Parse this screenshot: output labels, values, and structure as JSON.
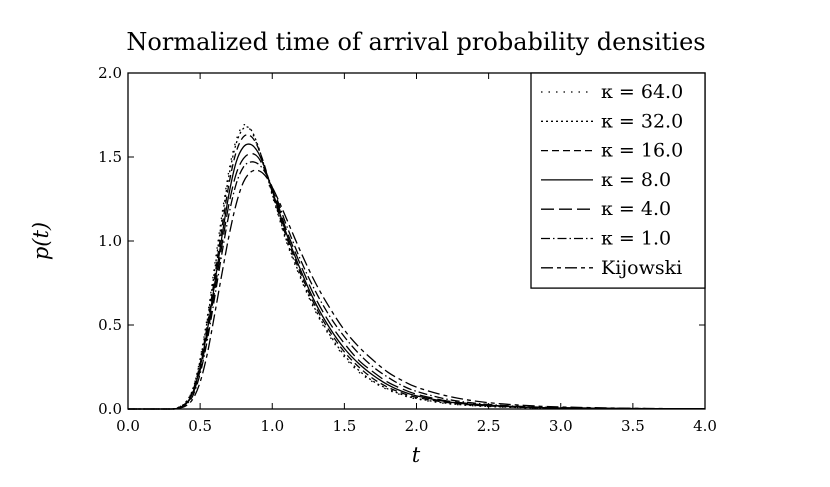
{
  "chart_data": {
    "type": "line",
    "title": "Normalized time of arrival probability densities",
    "xlabel": "t",
    "ylabel": "p(t)",
    "xlim": [
      0.0,
      4.0
    ],
    "ylim": [
      0.0,
      2.0
    ],
    "xticks": [
      "0.0",
      "0.5",
      "1.0",
      "1.5",
      "2.0",
      "2.5",
      "3.0",
      "3.5",
      "4.0"
    ],
    "yticks": [
      "0.0",
      "0.5",
      "1.0",
      "1.5",
      "2.0"
    ],
    "grid": false,
    "legend_position": "top-right",
    "x": [
      0.0,
      0.3,
      0.35,
      0.4,
      0.45,
      0.5,
      0.55,
      0.6,
      0.65,
      0.7,
      0.75,
      0.8,
      0.85,
      0.9,
      0.95,
      1.0,
      1.05,
      1.1,
      1.2,
      1.3,
      1.4,
      1.5,
      1.6,
      1.7,
      1.8,
      1.9,
      2.0,
      2.2,
      2.4,
      2.6,
      2.8,
      3.0,
      3.5,
      4.0
    ],
    "series": [
      {
        "name": "κ = 64.0",
        "dash": "1.5 6",
        "values": [
          0,
          0,
          0.01,
          0.04,
          0.12,
          0.3,
          0.55,
          0.85,
          1.15,
          1.42,
          1.6,
          1.69,
          1.66,
          1.56,
          1.42,
          1.27,
          1.13,
          0.99,
          0.77,
          0.58,
          0.43,
          0.31,
          0.22,
          0.16,
          0.115,
          0.082,
          0.06,
          0.033,
          0.019,
          0.011,
          0.007,
          0.004,
          0.002,
          0.001
        ]
      },
      {
        "name": "κ = 32.0",
        "dash": "2 3",
        "values": [
          0,
          0,
          0.01,
          0.04,
          0.12,
          0.29,
          0.53,
          0.82,
          1.12,
          1.39,
          1.58,
          1.67,
          1.665,
          1.57,
          1.43,
          1.28,
          1.14,
          1.0,
          0.78,
          0.59,
          0.44,
          0.32,
          0.23,
          0.165,
          0.12,
          0.086,
          0.063,
          0.035,
          0.02,
          0.012,
          0.007,
          0.0045,
          0.002,
          0.001
        ]
      },
      {
        "name": "κ = 16.0",
        "dash": "7 4",
        "values": [
          0,
          0,
          0.01,
          0.035,
          0.11,
          0.27,
          0.5,
          0.78,
          1.07,
          1.34,
          1.53,
          1.62,
          1.625,
          1.56,
          1.44,
          1.29,
          1.15,
          1.02,
          0.8,
          0.61,
          0.46,
          0.34,
          0.25,
          0.18,
          0.13,
          0.095,
          0.07,
          0.04,
          0.023,
          0.014,
          0.008,
          0.005,
          0.002,
          0.001
        ]
      },
      {
        "name": "κ = 8.0",
        "dash": "none",
        "values": [
          0,
          0,
          0.008,
          0.03,
          0.1,
          0.25,
          0.47,
          0.74,
          1.02,
          1.28,
          1.47,
          1.56,
          1.575,
          1.53,
          1.43,
          1.3,
          1.17,
          1.04,
          0.82,
          0.63,
          0.48,
          0.36,
          0.27,
          0.2,
          0.145,
          0.105,
          0.078,
          0.045,
          0.026,
          0.016,
          0.01,
          0.006,
          0.0025,
          0.001
        ]
      },
      {
        "name": "κ = 4.0",
        "dash": "13 5",
        "values": [
          0,
          0,
          0.007,
          0.028,
          0.09,
          0.23,
          0.44,
          0.7,
          0.97,
          1.22,
          1.4,
          1.49,
          1.52,
          1.5,
          1.42,
          1.31,
          1.19,
          1.06,
          0.85,
          0.66,
          0.51,
          0.39,
          0.29,
          0.22,
          0.16,
          0.12,
          0.088,
          0.05,
          0.03,
          0.018,
          0.011,
          0.007,
          0.003,
          0.001
        ]
      },
      {
        "name": "κ = 1.0",
        "dash": "9 3 1.5 3",
        "values": [
          0,
          0,
          0.006,
          0.025,
          0.08,
          0.21,
          0.41,
          0.66,
          0.92,
          1.16,
          1.34,
          1.44,
          1.47,
          1.46,
          1.41,
          1.32,
          1.21,
          1.09,
          0.88,
          0.7,
          0.55,
          0.43,
          0.33,
          0.25,
          0.19,
          0.14,
          0.105,
          0.06,
          0.035,
          0.021,
          0.013,
          0.008,
          0.003,
          0.001
        ]
      },
      {
        "name": "Kijowski",
        "dash": "12 4 4 4",
        "values": [
          0,
          0,
          0.004,
          0.018,
          0.06,
          0.16,
          0.33,
          0.56,
          0.8,
          1.03,
          1.22,
          1.35,
          1.41,
          1.42,
          1.39,
          1.32,
          1.23,
          1.13,
          0.93,
          0.75,
          0.6,
          0.47,
          0.37,
          0.29,
          0.22,
          0.17,
          0.13,
          0.08,
          0.048,
          0.03,
          0.019,
          0.012,
          0.004,
          0.0015
        ]
      }
    ]
  }
}
